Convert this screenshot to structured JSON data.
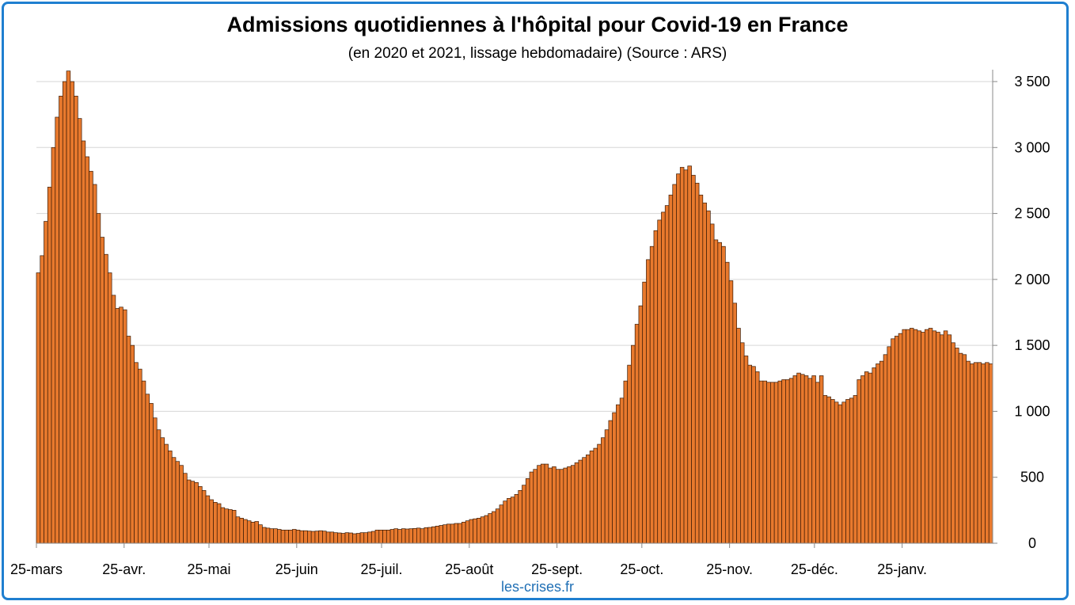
{
  "chart_data": {
    "type": "bar",
    "title": "Admissions quotidiennes à l'hôpital pour Covid-19 en France",
    "subtitle": "(en 2020 et 2021, lissage hebdomadaire) (Source : ARS)",
    "xlabel": "",
    "ylabel": "",
    "ylim": [
      0,
      3500
    ],
    "yticks": [
      0,
      500,
      1000,
      1500,
      2000,
      2500,
      3000,
      3500
    ],
    "ytick_labels": [
      "0",
      "500",
      "1 000",
      "1 500",
      "2 000",
      "2 500",
      "3 000",
      "3 500"
    ],
    "y_axis_side": "right",
    "grid": true,
    "x_tick_labels": [
      {
        "label": "25-mars",
        "day": 0
      },
      {
        "label": "25-avr.",
        "day": 31
      },
      {
        "label": "25-mai",
        "day": 61
      },
      {
        "label": "25-juin",
        "day": 92
      },
      {
        "label": "25-juil.",
        "day": 122
      },
      {
        "label": "25-août",
        "day": 153
      },
      {
        "label": "25-sept.",
        "day": 184
      },
      {
        "label": "25-oct.",
        "day": 214
      },
      {
        "label": "25-nov.",
        "day": 245
      },
      {
        "label": "25-déc.",
        "day": 275
      },
      {
        "label": "25-janv.",
        "day": 306
      }
    ],
    "series_color": "#e8792d",
    "bar_edge_color": "#3a1a05",
    "keyframes": [
      [
        0,
        2050
      ],
      [
        1,
        2180
      ],
      [
        2,
        2440
      ],
      [
        3,
        2700
      ],
      [
        4,
        3000
      ],
      [
        5,
        3230
      ],
      [
        6,
        3390
      ],
      [
        7,
        3500
      ],
      [
        8,
        3580
      ],
      [
        9,
        3500
      ],
      [
        10,
        3390
      ],
      [
        11,
        3220
      ],
      [
        12,
        3050
      ],
      [
        13,
        2930
      ],
      [
        14,
        2820
      ],
      [
        15,
        2720
      ],
      [
        16,
        2500
      ],
      [
        17,
        2320
      ],
      [
        18,
        2190
      ],
      [
        19,
        2050
      ],
      [
        20,
        1880
      ],
      [
        21,
        1780
      ],
      [
        22,
        1790
      ],
      [
        23,
        1770
      ],
      [
        24,
        1570
      ],
      [
        25,
        1500
      ],
      [
        26,
        1370
      ],
      [
        27,
        1320
      ],
      [
        28,
        1230
      ],
      [
        29,
        1130
      ],
      [
        30,
        1060
      ],
      [
        31,
        950
      ],
      [
        32,
        860
      ],
      [
        33,
        800
      ],
      [
        34,
        750
      ],
      [
        35,
        700
      ],
      [
        36,
        650
      ],
      [
        37,
        620
      ],
      [
        38,
        590
      ],
      [
        39,
        530
      ],
      [
        40,
        480
      ],
      [
        41,
        470
      ],
      [
        42,
        460
      ],
      [
        43,
        430
      ],
      [
        44,
        400
      ],
      [
        45,
        360
      ],
      [
        46,
        330
      ],
      [
        47,
        310
      ],
      [
        48,
        300
      ],
      [
        49,
        270
      ],
      [
        50,
        260
      ],
      [
        51,
        255
      ],
      [
        52,
        250
      ],
      [
        53,
        200
      ],
      [
        54,
        190
      ],
      [
        55,
        180
      ],
      [
        56,
        170
      ],
      [
        57,
        160
      ],
      [
        58,
        165
      ],
      [
        59,
        140
      ],
      [
        60,
        120
      ],
      [
        61,
        115
      ],
      [
        62,
        110
      ],
      [
        63,
        110
      ],
      [
        64,
        105
      ],
      [
        65,
        100
      ],
      [
        66,
        100
      ],
      [
        67,
        100
      ],
      [
        68,
        105
      ],
      [
        69,
        100
      ],
      [
        70,
        95
      ],
      [
        71,
        95
      ],
      [
        72,
        92
      ],
      [
        73,
        90
      ],
      [
        74,
        92
      ],
      [
        75,
        95
      ],
      [
        76,
        92
      ],
      [
        77,
        85
      ],
      [
        78,
        85
      ],
      [
        79,
        80
      ],
      [
        80,
        78
      ],
      [
        81,
        75
      ],
      [
        82,
        80
      ],
      [
        83,
        78
      ],
      [
        84,
        72
      ],
      [
        85,
        75
      ],
      [
        86,
        80
      ],
      [
        87,
        80
      ],
      [
        88,
        85
      ],
      [
        89,
        90
      ],
      [
        90,
        100
      ],
      [
        91,
        100
      ],
      [
        92,
        100
      ],
      [
        93,
        100
      ],
      [
        94,
        105
      ],
      [
        95,
        110
      ],
      [
        96,
        105
      ],
      [
        97,
        110
      ],
      [
        98,
        108
      ],
      [
        99,
        110
      ],
      [
        100,
        112
      ],
      [
        101,
        115
      ],
      [
        102,
        110
      ],
      [
        103,
        118
      ],
      [
        104,
        120
      ],
      [
        105,
        125
      ],
      [
        106,
        130
      ],
      [
        107,
        135
      ],
      [
        108,
        140
      ],
      [
        109,
        145
      ],
      [
        110,
        145
      ],
      [
        111,
        150
      ],
      [
        112,
        150
      ],
      [
        113,
        160
      ],
      [
        114,
        170
      ],
      [
        115,
        180
      ],
      [
        116,
        185
      ],
      [
        117,
        190
      ],
      [
        118,
        200
      ],
      [
        119,
        210
      ],
      [
        120,
        225
      ],
      [
        121,
        240
      ],
      [
        122,
        260
      ],
      [
        123,
        290
      ],
      [
        124,
        320
      ],
      [
        125,
        340
      ],
      [
        126,
        350
      ],
      [
        127,
        370
      ],
      [
        128,
        400
      ],
      [
        129,
        440
      ],
      [
        130,
        490
      ],
      [
        131,
        540
      ],
      [
        132,
        560
      ],
      [
        133,
        590
      ],
      [
        134,
        600
      ],
      [
        135,
        600
      ],
      [
        136,
        570
      ],
      [
        137,
        580
      ],
      [
        138,
        560
      ],
      [
        139,
        560
      ],
      [
        140,
        570
      ],
      [
        141,
        580
      ],
      [
        142,
        590
      ],
      [
        143,
        610
      ],
      [
        144,
        630
      ],
      [
        145,
        650
      ],
      [
        146,
        670
      ],
      [
        147,
        700
      ],
      [
        148,
        720
      ],
      [
        149,
        750
      ],
      [
        150,
        800
      ],
      [
        151,
        860
      ],
      [
        152,
        930
      ],
      [
        153,
        990
      ],
      [
        154,
        1050
      ],
      [
        155,
        1100
      ],
      [
        156,
        1230
      ],
      [
        157,
        1350
      ],
      [
        158,
        1500
      ],
      [
        159,
        1660
      ],
      [
        160,
        1800
      ],
      [
        161,
        1980
      ],
      [
        162,
        2150
      ],
      [
        163,
        2250
      ],
      [
        164,
        2370
      ],
      [
        165,
        2450
      ],
      [
        166,
        2510
      ],
      [
        167,
        2560
      ],
      [
        168,
        2640
      ],
      [
        169,
        2720
      ],
      [
        170,
        2800
      ],
      [
        171,
        2850
      ],
      [
        172,
        2830
      ],
      [
        173,
        2860
      ],
      [
        174,
        2790
      ],
      [
        175,
        2730
      ],
      [
        176,
        2640
      ],
      [
        177,
        2580
      ],
      [
        178,
        2520
      ],
      [
        179,
        2420
      ],
      [
        180,
        2300
      ],
      [
        181,
        2280
      ],
      [
        182,
        2250
      ],
      [
        183,
        2130
      ],
      [
        184,
        1990
      ],
      [
        185,
        1820
      ],
      [
        186,
        1630
      ],
      [
        187,
        1520
      ],
      [
        188,
        1420
      ],
      [
        189,
        1350
      ],
      [
        190,
        1340
      ],
      [
        191,
        1300
      ],
      [
        192,
        1230
      ],
      [
        193,
        1230
      ],
      [
        194,
        1220
      ],
      [
        195,
        1220
      ],
      [
        196,
        1220
      ],
      [
        197,
        1230
      ],
      [
        198,
        1240
      ],
      [
        199,
        1240
      ],
      [
        200,
        1250
      ],
      [
        201,
        1270
      ],
      [
        202,
        1290
      ],
      [
        203,
        1280
      ],
      [
        204,
        1270
      ],
      [
        205,
        1250
      ],
      [
        206,
        1270
      ],
      [
        207,
        1220
      ],
      [
        208,
        1270
      ],
      [
        209,
        1120
      ],
      [
        210,
        1110
      ],
      [
        211,
        1090
      ],
      [
        212,
        1070
      ],
      [
        213,
        1050
      ],
      [
        214,
        1070
      ],
      [
        215,
        1090
      ],
      [
        216,
        1100
      ],
      [
        217,
        1120
      ],
      [
        218,
        1240
      ],
      [
        219,
        1270
      ],
      [
        220,
        1300
      ],
      [
        221,
        1290
      ],
      [
        222,
        1330
      ],
      [
        223,
        1360
      ],
      [
        224,
        1380
      ],
      [
        225,
        1430
      ],
      [
        226,
        1490
      ],
      [
        227,
        1550
      ],
      [
        228,
        1570
      ],
      [
        229,
        1590
      ],
      [
        230,
        1620
      ],
      [
        231,
        1620
      ],
      [
        232,
        1630
      ],
      [
        233,
        1620
      ],
      [
        234,
        1610
      ],
      [
        235,
        1600
      ],
      [
        236,
        1620
      ],
      [
        237,
        1630
      ],
      [
        238,
        1610
      ],
      [
        239,
        1600
      ],
      [
        240,
        1580
      ],
      [
        241,
        1610
      ],
      [
        242,
        1580
      ],
      [
        243,
        1520
      ],
      [
        244,
        1480
      ],
      [
        245,
        1440
      ],
      [
        246,
        1430
      ],
      [
        247,
        1380
      ],
      [
        248,
        1360
      ],
      [
        249,
        1370
      ],
      [
        250,
        1370
      ],
      [
        251,
        1360
      ],
      [
        252,
        1370
      ],
      [
        253,
        1360
      ]
    ],
    "bar_count": 254,
    "day_span": 338
  },
  "source_credit": "les-crises.fr"
}
